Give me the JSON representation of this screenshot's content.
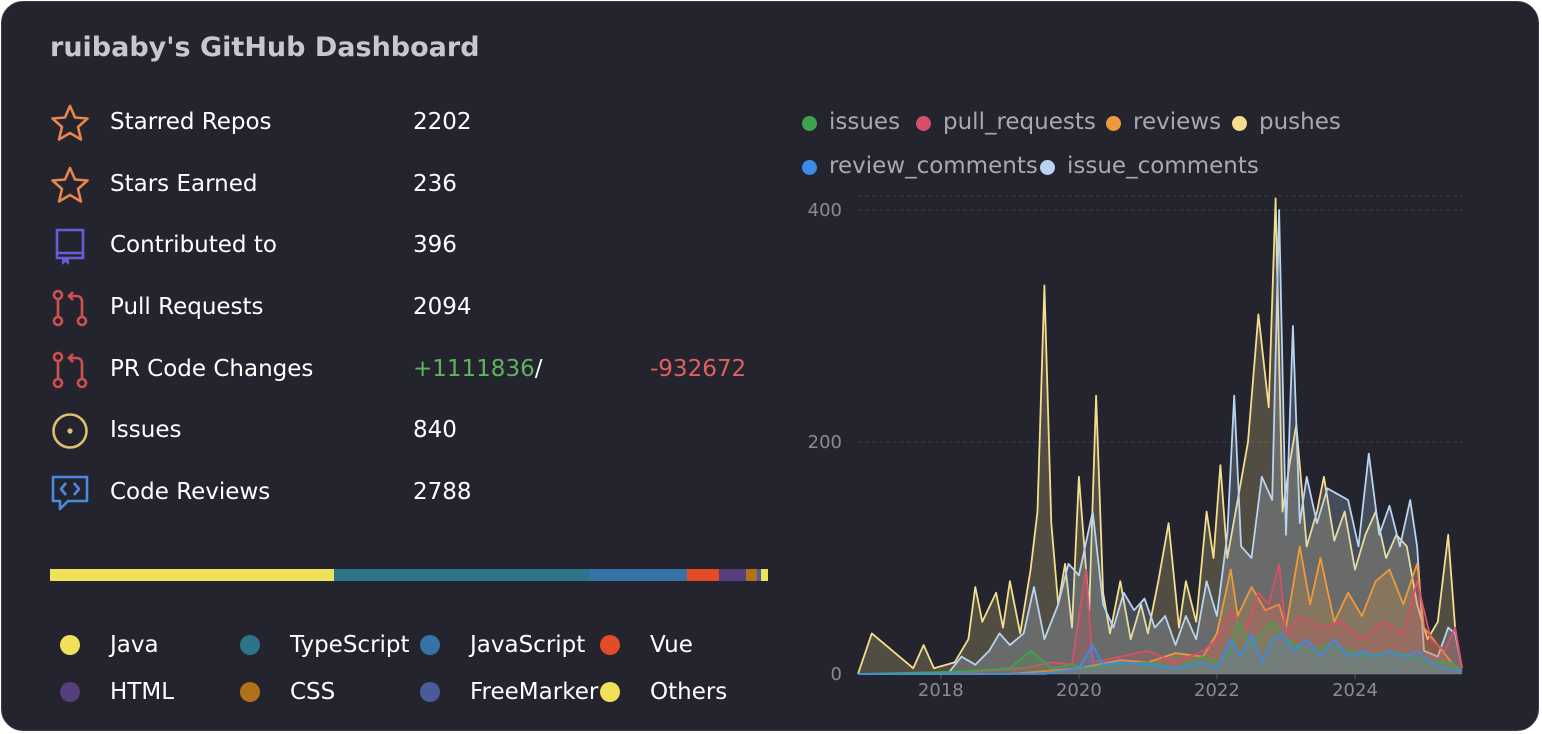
{
  "title": "ruibaby's GitHub Dashboard",
  "stats": [
    {
      "label": "Starred Repos",
      "value": "2202",
      "icon": "star-icon",
      "color": "#e8854d"
    },
    {
      "label": "Stars Earned",
      "value": "236",
      "icon": "star-icon",
      "color": "#e8854d"
    },
    {
      "label": "Contributed to",
      "value": "396",
      "icon": "repo-icon",
      "color": "#6b5bd6"
    },
    {
      "label": "Pull Requests",
      "value": "2094",
      "icon": "pull-request-icon",
      "color": "#d05050"
    },
    {
      "label": "PR Code Changes",
      "additions": "+1111836",
      "separator": "/",
      "deletions": "-932672",
      "icon": "pull-request-icon",
      "color": "#d05050"
    },
    {
      "label": "Issues",
      "value": "840",
      "icon": "issue-icon",
      "color": "#e0c070"
    },
    {
      "label": "Code Reviews",
      "value": "2788",
      "icon": "code-review-icon",
      "color": "#4a8ae0"
    }
  ],
  "languages": [
    {
      "name": "Java",
      "color": "#f1e05a",
      "share": 39.6
    },
    {
      "name": "TypeScript",
      "color": "#2b7489",
      "share": 35.5
    },
    {
      "name": "JavaScript",
      "color": "#3572a5",
      "share": 13.6
    },
    {
      "name": "Vue",
      "color": "#e34c26",
      "share": 4.5
    },
    {
      "name": "HTML",
      "color": "#563d7c",
      "share": 3.8
    },
    {
      "name": "CSS",
      "color": "#b07219",
      "share": 1.5
    },
    {
      "name": "FreeMarker",
      "color": "#4a5a9a",
      "share": 0.5
    },
    {
      "name": "Others",
      "color": "#f1e05a",
      "share": 1.0
    }
  ],
  "chart_data": {
    "type": "area",
    "xlabel": "",
    "ylabel": "",
    "ylim": [
      0,
      400
    ],
    "xlim": [
      2016.8,
      2025.55
    ],
    "x_ticks": [
      "2018",
      "2020",
      "2022",
      "2024"
    ],
    "y_ticks": [
      "0",
      "200",
      "400"
    ],
    "grid": true,
    "legend": "top",
    "series": [
      {
        "name": "issues",
        "color": "#3fa34d",
        "points": [
          [
            2016.8,
            0
          ],
          [
            2018.3,
            2
          ],
          [
            2019.0,
            5
          ],
          [
            2019.3,
            20
          ],
          [
            2019.6,
            5
          ],
          [
            2019.9,
            8
          ],
          [
            2020.1,
            5
          ],
          [
            2020.5,
            8
          ],
          [
            2021.0,
            10
          ],
          [
            2021.4,
            5
          ],
          [
            2021.8,
            15
          ],
          [
            2022.0,
            10
          ],
          [
            2022.2,
            20
          ],
          [
            2022.3,
            45
          ],
          [
            2022.5,
            25
          ],
          [
            2022.8,
            45
          ],
          [
            2023.0,
            30
          ],
          [
            2023.3,
            20
          ],
          [
            2023.6,
            25
          ],
          [
            2023.9,
            20
          ],
          [
            2024.2,
            15
          ],
          [
            2024.5,
            20
          ],
          [
            2024.8,
            15
          ],
          [
            2025.1,
            10
          ],
          [
            2025.4,
            10
          ],
          [
            2025.55,
            2
          ]
        ]
      },
      {
        "name": "pull_requests",
        "color": "#d5506a",
        "points": [
          [
            2016.8,
            0
          ],
          [
            2018.5,
            2
          ],
          [
            2019.2,
            5
          ],
          [
            2019.6,
            10
          ],
          [
            2019.9,
            8
          ],
          [
            2020.1,
            90
          ],
          [
            2020.2,
            10
          ],
          [
            2020.6,
            15
          ],
          [
            2021.0,
            20
          ],
          [
            2021.4,
            10
          ],
          [
            2021.8,
            20
          ],
          [
            2022.0,
            30
          ],
          [
            2022.2,
            55
          ],
          [
            2022.4,
            35
          ],
          [
            2022.6,
            70
          ],
          [
            2022.75,
            60
          ],
          [
            2022.9,
            95
          ],
          [
            2023.0,
            35
          ],
          [
            2023.2,
            50
          ],
          [
            2023.5,
            40
          ],
          [
            2023.8,
            45
          ],
          [
            2024.1,
            30
          ],
          [
            2024.4,
            45
          ],
          [
            2024.7,
            35
          ],
          [
            2024.9,
            80
          ],
          [
            2025.1,
            30
          ],
          [
            2025.3,
            20
          ],
          [
            2025.45,
            40
          ],
          [
            2025.55,
            5
          ]
        ]
      },
      {
        "name": "reviews",
        "color": "#f0993c",
        "points": [
          [
            2016.8,
            0
          ],
          [
            2019.0,
            0
          ],
          [
            2020.0,
            5
          ],
          [
            2020.6,
            12
          ],
          [
            2021.0,
            10
          ],
          [
            2021.4,
            18
          ],
          [
            2021.8,
            15
          ],
          [
            2022.0,
            35
          ],
          [
            2022.2,
            90
          ],
          [
            2022.3,
            50
          ],
          [
            2022.5,
            75
          ],
          [
            2022.7,
            55
          ],
          [
            2022.9,
            60
          ],
          [
            2023.0,
            40
          ],
          [
            2023.2,
            110
          ],
          [
            2023.35,
            60
          ],
          [
            2023.5,
            100
          ],
          [
            2023.7,
            45
          ],
          [
            2023.9,
            70
          ],
          [
            2024.1,
            50
          ],
          [
            2024.3,
            80
          ],
          [
            2024.5,
            90
          ],
          [
            2024.7,
            60
          ],
          [
            2024.9,
            95
          ],
          [
            2025.0,
            40
          ],
          [
            2025.2,
            25
          ],
          [
            2025.4,
            10
          ],
          [
            2025.55,
            2
          ]
        ]
      },
      {
        "name": "pushes",
        "color": "#f4dd8c",
        "points": [
          [
            2016.8,
            0
          ],
          [
            2017.0,
            35
          ],
          [
            2017.3,
            20
          ],
          [
            2017.6,
            5
          ],
          [
            2017.75,
            25
          ],
          [
            2017.9,
            5
          ],
          [
            2018.2,
            10
          ],
          [
            2018.4,
            30
          ],
          [
            2018.5,
            75
          ],
          [
            2018.6,
            45
          ],
          [
            2018.8,
            70
          ],
          [
            2018.9,
            40
          ],
          [
            2019.0,
            80
          ],
          [
            2019.15,
            35
          ],
          [
            2019.3,
            90
          ],
          [
            2019.4,
            140
          ],
          [
            2019.5,
            335
          ],
          [
            2019.6,
            130
          ],
          [
            2019.7,
            60
          ],
          [
            2019.8,
            95
          ],
          [
            2019.9,
            40
          ],
          [
            2020.0,
            170
          ],
          [
            2020.15,
            55
          ],
          [
            2020.25,
            240
          ],
          [
            2020.35,
            70
          ],
          [
            2020.45,
            35
          ],
          [
            2020.6,
            80
          ],
          [
            2020.75,
            30
          ],
          [
            2020.9,
            60
          ],
          [
            2021.0,
            35
          ],
          [
            2021.15,
            80
          ],
          [
            2021.3,
            130
          ],
          [
            2021.45,
            40
          ],
          [
            2021.55,
            80
          ],
          [
            2021.7,
            45
          ],
          [
            2021.85,
            140
          ],
          [
            2021.95,
            100
          ],
          [
            2022.05,
            180
          ],
          [
            2022.15,
            100
          ],
          [
            2022.3,
            150
          ],
          [
            2022.45,
            200
          ],
          [
            2022.6,
            310
          ],
          [
            2022.75,
            230
          ],
          [
            2022.85,
            410
          ],
          [
            2022.95,
            140
          ],
          [
            2023.05,
            180
          ],
          [
            2023.15,
            215
          ],
          [
            2023.3,
            110
          ],
          [
            2023.45,
            140
          ],
          [
            2023.55,
            170
          ],
          [
            2023.7,
            115
          ],
          [
            2023.85,
            140
          ],
          [
            2024.0,
            90
          ],
          [
            2024.15,
            120
          ],
          [
            2024.3,
            140
          ],
          [
            2024.45,
            100
          ],
          [
            2024.6,
            120
          ],
          [
            2024.75,
            110
          ],
          [
            2024.9,
            60
          ],
          [
            2025.05,
            30
          ],
          [
            2025.2,
            45
          ],
          [
            2025.35,
            120
          ],
          [
            2025.45,
            40
          ],
          [
            2025.55,
            5
          ]
        ]
      },
      {
        "name": "review_comments",
        "color": "#3b8be8",
        "points": [
          [
            2016.8,
            0
          ],
          [
            2019.5,
            0
          ],
          [
            2020.0,
            5
          ],
          [
            2020.2,
            25
          ],
          [
            2020.35,
            8
          ],
          [
            2020.6,
            10
          ],
          [
            2021.0,
            8
          ],
          [
            2021.4,
            5
          ],
          [
            2021.8,
            10
          ],
          [
            2022.0,
            5
          ],
          [
            2022.2,
            30
          ],
          [
            2022.35,
            15
          ],
          [
            2022.5,
            35
          ],
          [
            2022.65,
            10
          ],
          [
            2022.8,
            30
          ],
          [
            2022.95,
            35
          ],
          [
            2023.1,
            20
          ],
          [
            2023.3,
            30
          ],
          [
            2023.5,
            15
          ],
          [
            2023.7,
            30
          ],
          [
            2023.9,
            15
          ],
          [
            2024.1,
            20
          ],
          [
            2024.3,
            15
          ],
          [
            2024.5,
            20
          ],
          [
            2024.7,
            15
          ],
          [
            2024.9,
            20
          ],
          [
            2025.1,
            10
          ],
          [
            2025.3,
            5
          ],
          [
            2025.55,
            2
          ]
        ]
      },
      {
        "name": "issue_comments",
        "color": "#b8d4f0",
        "points": [
          [
            2016.8,
            0
          ],
          [
            2018.1,
            0
          ],
          [
            2018.3,
            15
          ],
          [
            2018.5,
            8
          ],
          [
            2018.7,
            20
          ],
          [
            2018.85,
            35
          ],
          [
            2019.0,
            25
          ],
          [
            2019.2,
            35
          ],
          [
            2019.35,
            75
          ],
          [
            2019.5,
            30
          ],
          [
            2019.7,
            60
          ],
          [
            2019.85,
            95
          ],
          [
            2020.0,
            85
          ],
          [
            2020.2,
            140
          ],
          [
            2020.35,
            60
          ],
          [
            2020.5,
            40
          ],
          [
            2020.65,
            70
          ],
          [
            2020.8,
            55
          ],
          [
            2020.95,
            65
          ],
          [
            2021.1,
            40
          ],
          [
            2021.25,
            50
          ],
          [
            2021.4,
            25
          ],
          [
            2021.55,
            50
          ],
          [
            2021.7,
            30
          ],
          [
            2021.85,
            80
          ],
          [
            2022.0,
            50
          ],
          [
            2022.15,
            120
          ],
          [
            2022.25,
            240
          ],
          [
            2022.35,
            110
          ],
          [
            2022.5,
            100
          ],
          [
            2022.65,
            170
          ],
          [
            2022.8,
            150
          ],
          [
            2022.9,
            400
          ],
          [
            2023.0,
            120
          ],
          [
            2023.1,
            300
          ],
          [
            2023.2,
            130
          ],
          [
            2023.3,
            170
          ],
          [
            2023.45,
            130
          ],
          [
            2023.6,
            160
          ],
          [
            2023.75,
            155
          ],
          [
            2023.9,
            150
          ],
          [
            2024.05,
            110
          ],
          [
            2024.2,
            190
          ],
          [
            2024.35,
            120
          ],
          [
            2024.5,
            145
          ],
          [
            2024.65,
            110
          ],
          [
            2024.8,
            150
          ],
          [
            2024.9,
            110
          ],
          [
            2025.0,
            20
          ],
          [
            2025.2,
            15
          ],
          [
            2025.35,
            40
          ],
          [
            2025.45,
            35
          ],
          [
            2025.55,
            5
          ]
        ]
      }
    ]
  }
}
